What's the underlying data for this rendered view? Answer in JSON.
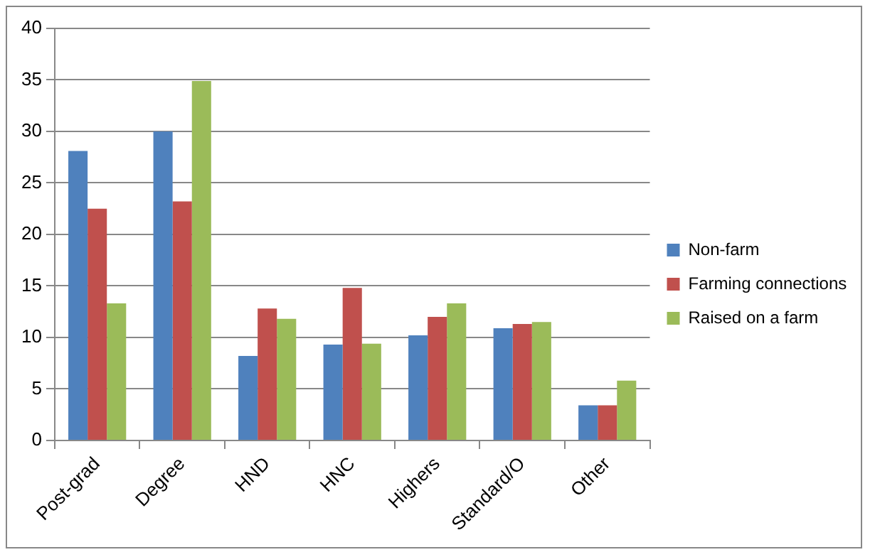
{
  "chart_data": {
    "type": "bar",
    "categories": [
      "Post-grad",
      "Degree",
      "HND",
      "HNC",
      "Highers",
      "Standard/O",
      "Other"
    ],
    "series": [
      {
        "name": "Non-farm",
        "color": "#4f81bd",
        "values": [
          28.1,
          30.0,
          8.2,
          9.3,
          10.2,
          10.9,
          3.4
        ]
      },
      {
        "name": "Farming connections",
        "color": "#c0504d",
        "values": [
          22.5,
          23.2,
          12.8,
          14.8,
          12.0,
          11.3,
          3.4
        ]
      },
      {
        "name": "Raised on a farm",
        "color": "#9bbb59",
        "values": [
          13.3,
          34.9,
          11.8,
          9.4,
          13.3,
          11.5,
          5.8
        ]
      }
    ],
    "ylim": [
      0,
      40
    ],
    "yticks": [
      0,
      5,
      10,
      15,
      20,
      25,
      30,
      35,
      40
    ],
    "grid": "y",
    "legend": "right"
  }
}
